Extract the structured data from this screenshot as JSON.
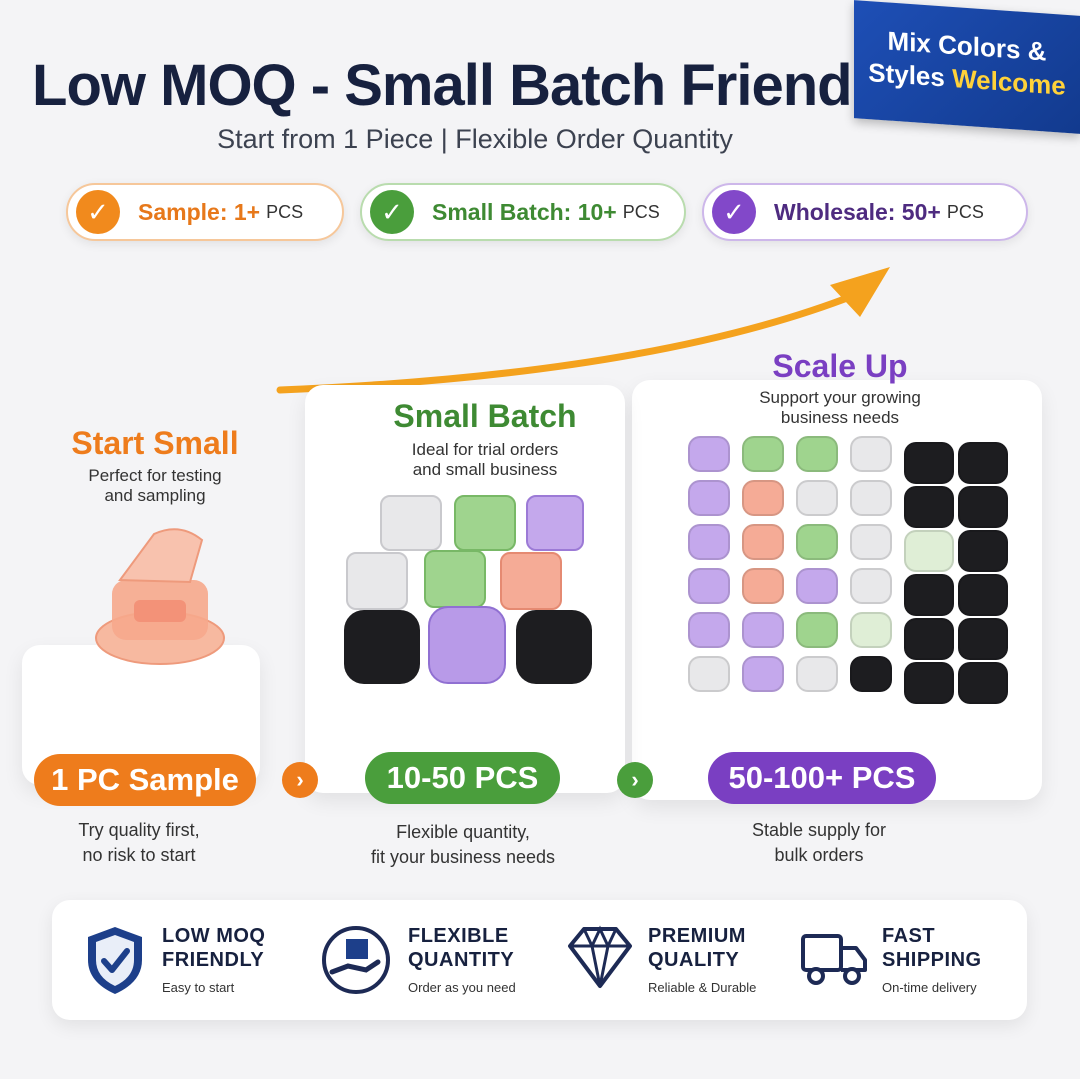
{
  "header": {
    "title": "Low MOQ - Small Batch Friendly",
    "subtitle": "Start from 1 Piece | Flexible Order Quantity"
  },
  "ribbon": {
    "line1": "Mix Colors &",
    "line2a": "Styles",
    "line2b": "Welcome"
  },
  "pills": [
    {
      "label": "Sample: 1+",
      "unit": "PCS"
    },
    {
      "label": "Small Batch: 10+",
      "unit": "PCS"
    },
    {
      "label": "Wholesale: 50+",
      "unit": "PCS"
    }
  ],
  "stages": [
    {
      "title": "Start Small",
      "desc1": "Perfect for testing",
      "desc2": "and sampling",
      "badge": "1 PC Sample",
      "note1": "Try quality first,",
      "note2": "no risk to start"
    },
    {
      "title": "Small Batch",
      "desc1": "Ideal for trial orders",
      "desc2": "and small business",
      "badge": "10-50 PCS",
      "note1": "Flexible quantity,",
      "note2": "fit your business needs"
    },
    {
      "title": "Scale Up",
      "desc1": "Support your growing",
      "desc2": "business needs",
      "badge": "50-100+ PCS",
      "note1": "Stable supply for",
      "note2": "bulk orders"
    }
  ],
  "features": [
    {
      "t1": "LOW MOQ",
      "t2": "FRIENDLY",
      "sub": "Easy to start",
      "icon": "shield-check-icon"
    },
    {
      "t1": "FLEXIBLE",
      "t2": "QUANTITY",
      "sub": "Order as you need",
      "icon": "hand-box-icon"
    },
    {
      "t1": "PREMIUM",
      "t2": "QUALITY",
      "sub": "Reliable & Durable",
      "icon": "diamond-icon"
    },
    {
      "t1": "FAST",
      "t2": "SHIPPING",
      "sub": "On-time delivery",
      "icon": "truck-icon"
    }
  ],
  "colors": {
    "orange": "#f18a1d",
    "green": "#4a9e3c",
    "purple": "#7a3fc2",
    "navy": "#17213f"
  }
}
